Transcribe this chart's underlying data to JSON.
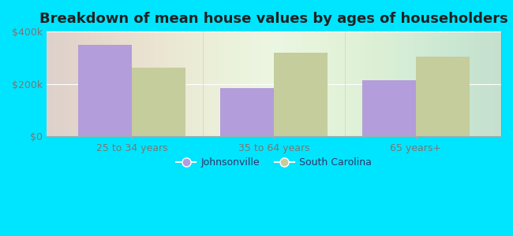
{
  "title": "Breakdown of mean house values by ages of householders",
  "categories": [
    "25 to 34 years",
    "35 to 64 years",
    "65 years+"
  ],
  "johnsonville_values": [
    350000,
    185000,
    215000
  ],
  "south_carolina_values": [
    262000,
    318000,
    305000
  ],
  "johnsonville_color": "#b39ddb",
  "south_carolina_color": "#c5cd9d",
  "background_outer": "#00e5ff",
  "background_inner_left": "#c8e6c9",
  "background_inner_right": "#f5fff5",
  "ylim": [
    0,
    400000
  ],
  "yticks": [
    0,
    200000,
    400000
  ],
  "ytick_labels": [
    "$0",
    "$200k",
    "$400k"
  ],
  "legend_labels": [
    "Johnsonville",
    "South Carolina"
  ],
  "title_fontsize": 13,
  "bar_width": 0.38,
  "tick_label_color": "#777777",
  "title_color": "#222222",
  "legend_text_color": "#333366"
}
